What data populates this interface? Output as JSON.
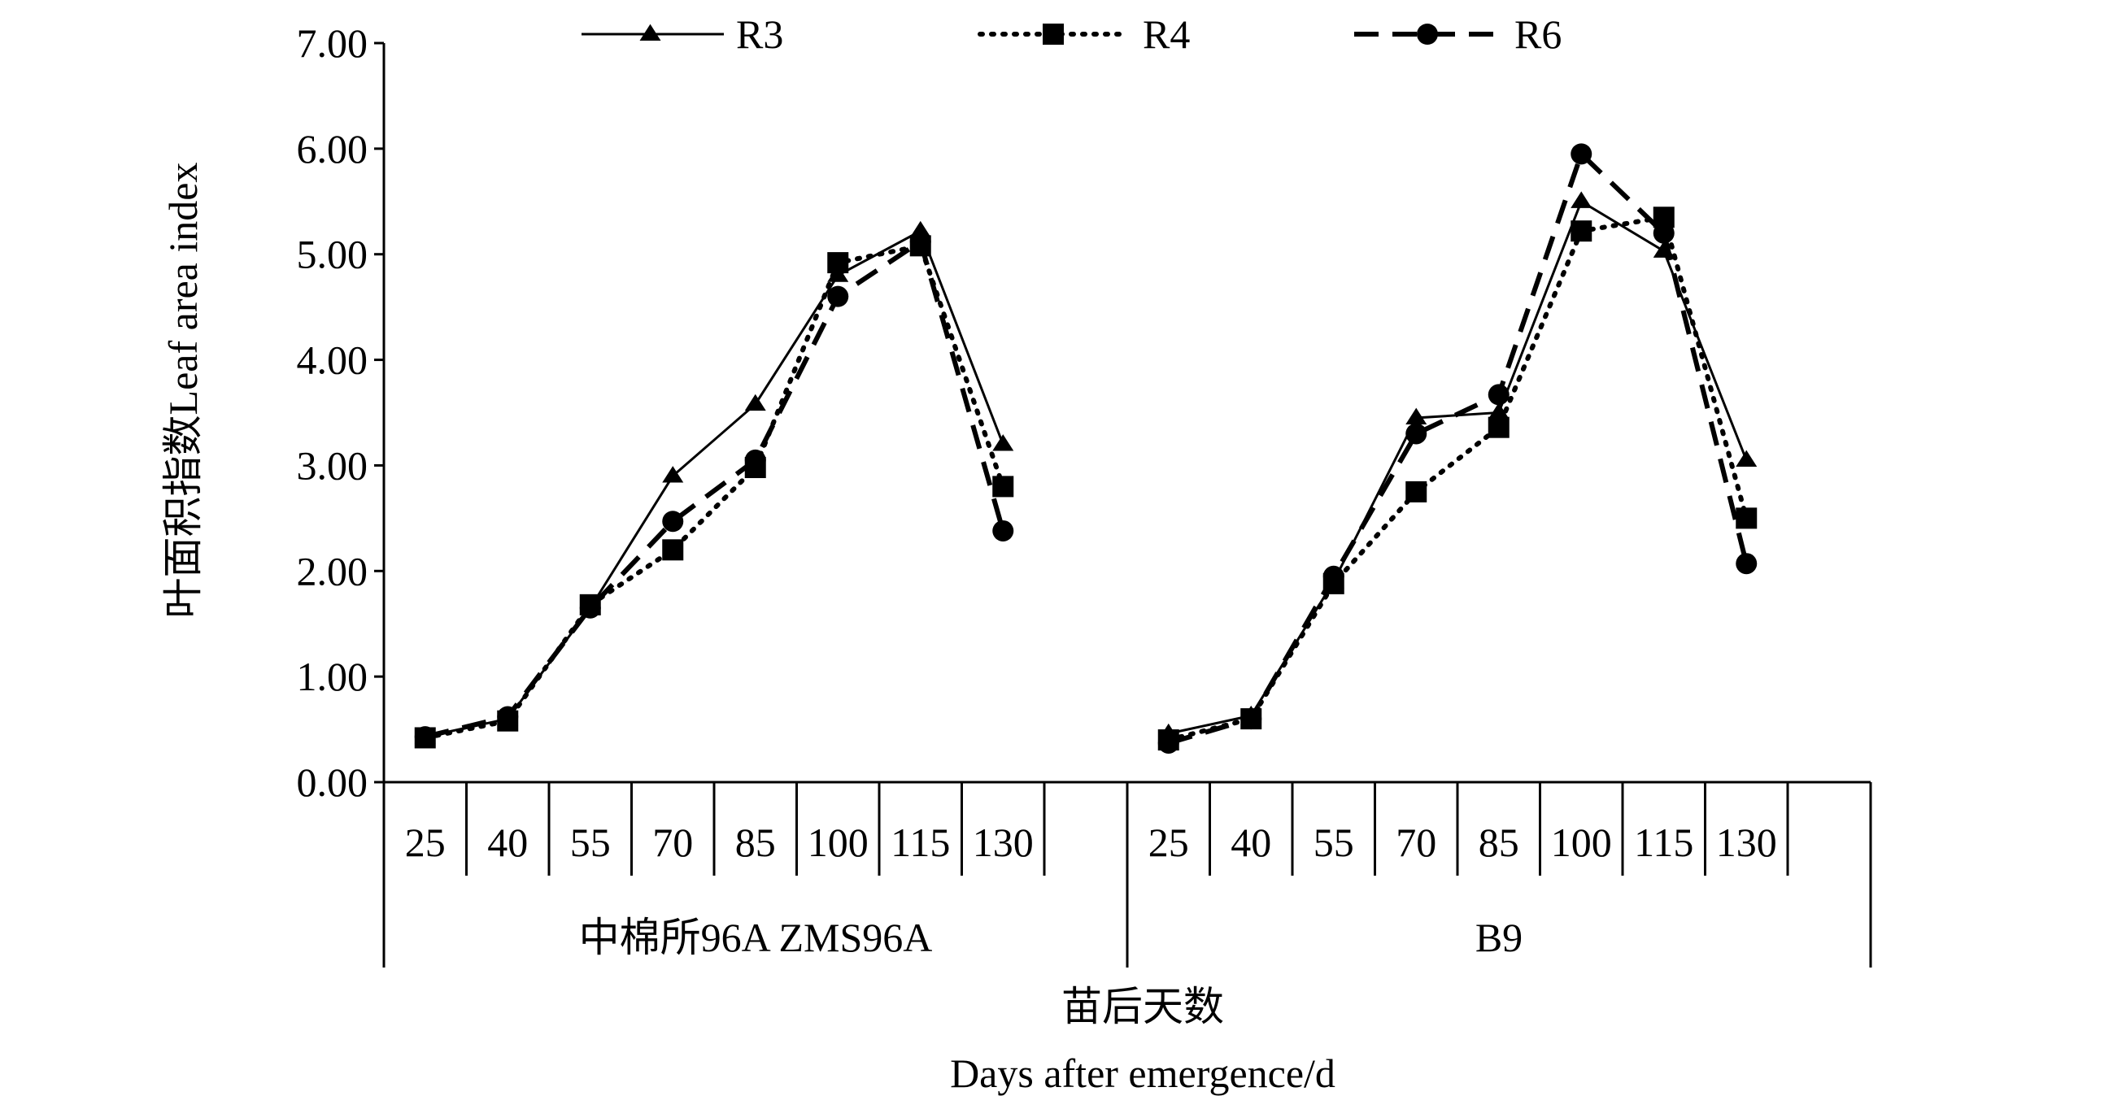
{
  "chart_data": {
    "type": "line",
    "ylabel_cn": "叶面积指数",
    "ylabel_en": "Leaf area index",
    "xlabel_cn": "苗后天数",
    "xlabel_en": "Days after emergence/d",
    "ylim": [
      0,
      7
    ],
    "yticks": [
      "0.00",
      "1.00",
      "2.00",
      "3.00",
      "4.00",
      "5.00",
      "6.00",
      "7.00"
    ],
    "days": [
      "25",
      "40",
      "55",
      "70",
      "85",
      "100",
      "115",
      "130"
    ],
    "groups": [
      {
        "label": "中棉所96A  ZMS96A",
        "series": {
          "R3": [
            0.43,
            0.6,
            1.65,
            2.9,
            3.58,
            4.8,
            5.22,
            3.2
          ],
          "R4": [
            0.42,
            0.58,
            1.68,
            2.2,
            2.98,
            4.92,
            5.08,
            2.8
          ],
          "R6": [
            0.43,
            0.62,
            1.65,
            2.47,
            3.05,
            4.6,
            5.12,
            2.38
          ]
        }
      },
      {
        "label": "B9",
        "series": {
          "R3": [
            0.46,
            0.63,
            1.9,
            3.45,
            3.5,
            5.5,
            5.03,
            3.05
          ],
          "R4": [
            0.4,
            0.6,
            1.88,
            2.75,
            3.36,
            5.22,
            5.35,
            2.5
          ],
          "R6": [
            0.37,
            0.6,
            1.95,
            3.3,
            3.67,
            5.95,
            5.2,
            2.07
          ]
        }
      }
    ],
    "legend": [
      {
        "name": "R3",
        "marker": "triangle",
        "dash": "solid"
      },
      {
        "name": "R4",
        "marker": "square",
        "dash": "dotted"
      },
      {
        "name": "R6",
        "marker": "circle",
        "dash": "dashed"
      }
    ],
    "legend_position": "top",
    "line_color": "#000000"
  }
}
